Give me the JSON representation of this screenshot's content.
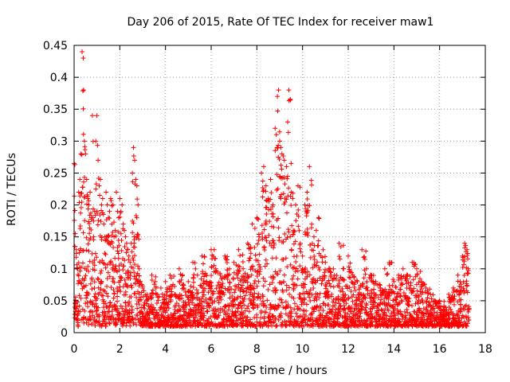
{
  "chart_data": {
    "type": "scatter",
    "title": "Day 206 of 2015, Rate Of TEC Index for receiver maw1",
    "xlabel": "GPS time / hours",
    "ylabel": "ROTI / TECUs",
    "xlim": [
      0,
      18
    ],
    "ylim": [
      0,
      0.45
    ],
    "xticks": [
      0,
      2,
      4,
      6,
      8,
      10,
      12,
      14,
      16,
      18
    ],
    "yticks": [
      0,
      0.05,
      0.1,
      0.15,
      0.2,
      0.25,
      0.3,
      0.35,
      0.4,
      0.45
    ],
    "xtick_labels": [
      "0",
      "2",
      "4",
      "6",
      "8",
      "10",
      "12",
      "14",
      "16",
      "18"
    ],
    "ytick_labels": [
      "0",
      "0.05",
      "0.1",
      "0.15",
      "0.2",
      "0.25",
      "0.3",
      "0.35",
      "0.4",
      "0.45"
    ],
    "grid": true,
    "marker": "+",
    "marker_color": "#ff0000",
    "series": [
      {
        "name": "maw1",
        "x": [
          0.0,
          0.05,
          0.1,
          0.15,
          0.2,
          0.25,
          0.3,
          0.35,
          0.4,
          0.42,
          0.45,
          0.5,
          0.55,
          0.6,
          0.65,
          0.7,
          0.75,
          0.8,
          0.85,
          0.9,
          0.95,
          1.0,
          1.05,
          1.1,
          1.15,
          1.2,
          1.25,
          1.3,
          1.35,
          1.4,
          1.45,
          1.5,
          1.55,
          1.6,
          1.65,
          1.7,
          1.75,
          1.8,
          1.85,
          1.9,
          1.95,
          2.0,
          2.05,
          2.1,
          2.15,
          2.2,
          2.25,
          2.3,
          2.35,
          2.4,
          2.45,
          2.5,
          2.55,
          2.6,
          2.65,
          2.7,
          2.75,
          2.8,
          2.85,
          2.9,
          3.0,
          3.2,
          3.4,
          3.6,
          3.8,
          4.0,
          4.2,
          4.4,
          4.6,
          4.8,
          5.0,
          5.2,
          5.4,
          5.6,
          5.8,
          6.0,
          6.2,
          6.4,
          6.6,
          6.8,
          7.0,
          7.2,
          7.4,
          7.6,
          7.8,
          8.0,
          8.1,
          8.2,
          8.3,
          8.4,
          8.5,
          8.6,
          8.7,
          8.8,
          8.85,
          8.9,
          8.95,
          9.0,
          9.05,
          9.1,
          9.2,
          9.3,
          9.35,
          9.4,
          9.5,
          9.6,
          9.7,
          9.8,
          9.9,
          10.0,
          10.1,
          10.2,
          10.3,
          10.4,
          10.5,
          10.6,
          10.7,
          10.8,
          10.9,
          11.0,
          11.2,
          11.4,
          11.6,
          11.8,
          12.0,
          12.2,
          12.4,
          12.6,
          12.8,
          13.0,
          13.2,
          13.4,
          13.6,
          13.8,
          14.0,
          14.2,
          14.4,
          14.6,
          14.8,
          15.0,
          15.2,
          15.4,
          15.6,
          15.8,
          16.0,
          16.2,
          16.4,
          16.6,
          16.8,
          16.9,
          17.0,
          17.1,
          17.2,
          17.25
        ],
        "y": [
          0.265,
          0.155,
          0.13,
          0.1,
          0.22,
          0.24,
          0.28,
          0.44,
          0.43,
          0.38,
          0.3,
          0.28,
          0.24,
          0.21,
          0.2,
          0.22,
          0.18,
          0.34,
          0.15,
          0.19,
          0.3,
          0.34,
          0.27,
          0.23,
          0.24,
          0.2,
          0.21,
          0.17,
          0.15,
          0.22,
          0.2,
          0.18,
          0.19,
          0.21,
          0.17,
          0.2,
          0.15,
          0.16,
          0.22,
          0.19,
          0.18,
          0.21,
          0.19,
          0.2,
          0.17,
          0.16,
          0.15,
          0.14,
          0.13,
          0.12,
          0.11,
          0.14,
          0.25,
          0.29,
          0.27,
          0.24,
          0.23,
          0.2,
          0.1,
          0.08,
          0.07,
          0.06,
          0.09,
          0.06,
          0.07,
          0.08,
          0.09,
          0.06,
          0.1,
          0.07,
          0.08,
          0.11,
          0.09,
          0.12,
          0.08,
          0.13,
          0.1,
          0.09,
          0.12,
          0.1,
          0.11,
          0.13,
          0.1,
          0.14,
          0.17,
          0.18,
          0.15,
          0.25,
          0.26,
          0.23,
          0.21,
          0.24,
          0.2,
          0.32,
          0.31,
          0.37,
          0.38,
          0.3,
          0.29,
          0.28,
          0.27,
          0.26,
          0.33,
          0.38,
          0.22,
          0.16,
          0.2,
          0.23,
          0.14,
          0.12,
          0.2,
          0.22,
          0.26,
          0.17,
          0.15,
          0.16,
          0.18,
          0.12,
          0.13,
          0.11,
          0.1,
          0.09,
          0.14,
          0.1,
          0.12,
          0.09,
          0.08,
          0.13,
          0.1,
          0.09,
          0.08,
          0.07,
          0.1,
          0.11,
          0.08,
          0.09,
          0.1,
          0.09,
          0.11,
          0.1,
          0.08,
          0.07,
          0.06,
          0.05,
          0.05,
          0.04,
          0.06,
          0.07,
          0.09,
          0.08,
          0.12,
          0.14,
          0.13,
          0.1
        ],
        "y_min_envelope": [
          0.01,
          0.015,
          0.02,
          0.01,
          0.02,
          0.015,
          0.02,
          0.01,
          0.02,
          0.015,
          0.01,
          0.015,
          0.02,
          0.01,
          0.015,
          0.02,
          0.01,
          0.015,
          0.02,
          0.01,
          0.015,
          0.02,
          0.015,
          0.01,
          0.02,
          0.01,
          0.015,
          0.02,
          0.01,
          0.015,
          0.02,
          0.015,
          0.01,
          0.02,
          0.01,
          0.015,
          0.02,
          0.01,
          0.015,
          0.02,
          0.015,
          0.01,
          0.02,
          0.01,
          0.015,
          0.02,
          0.01,
          0.015,
          0.02,
          0.015,
          0.01,
          0.02,
          0.01,
          0.015,
          0.02,
          0.01,
          0.015,
          0.02,
          0.015,
          0.01,
          0.01,
          0.01,
          0.01,
          0.01,
          0.01,
          0.01,
          0.01,
          0.01,
          0.01,
          0.01,
          0.01,
          0.01,
          0.01,
          0.01,
          0.01,
          0.01,
          0.01,
          0.01,
          0.01,
          0.01,
          0.01,
          0.01,
          0.01,
          0.01,
          0.01,
          0.01,
          0.01,
          0.01,
          0.01,
          0.01,
          0.01,
          0.01,
          0.01,
          0.01,
          0.01,
          0.01,
          0.01,
          0.01,
          0.01,
          0.01,
          0.01,
          0.01,
          0.01,
          0.01,
          0.01,
          0.01,
          0.01,
          0.01,
          0.01,
          0.01,
          0.01,
          0.01,
          0.01,
          0.01,
          0.01,
          0.01,
          0.01,
          0.01,
          0.01,
          0.01,
          0.01,
          0.01,
          0.01,
          0.01,
          0.01,
          0.01,
          0.01,
          0.01,
          0.01,
          0.01,
          0.01,
          0.01,
          0.01,
          0.01,
          0.01,
          0.01,
          0.01,
          0.01,
          0.01,
          0.01,
          0.01,
          0.01,
          0.01,
          0.01,
          0.01,
          0.01,
          0.01,
          0.01,
          0.01,
          0.01,
          0.01,
          0.01,
          0.01,
          0.01
        ]
      }
    ]
  }
}
